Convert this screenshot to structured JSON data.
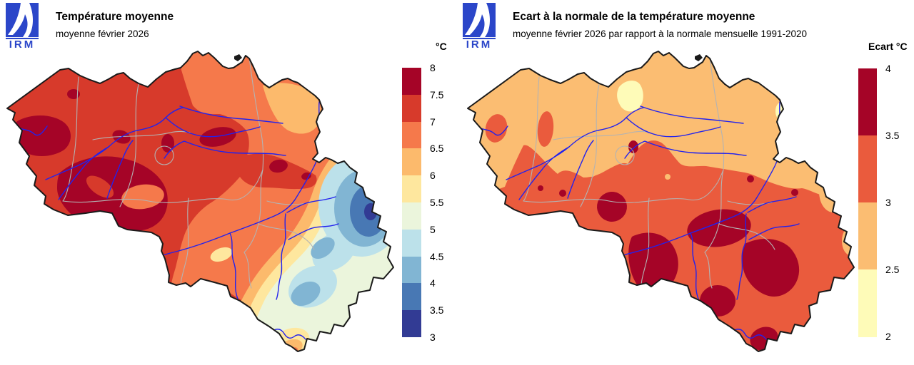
{
  "left_panel": {
    "logo_text": "IRM",
    "title": "Température moyenne",
    "subtitle": "moyenne février 2026",
    "colorbar": {
      "unit": "°C",
      "labels": [
        "8",
        "7.5",
        "7",
        "6.5",
        "6",
        "5.5",
        "5",
        "4.5",
        "4",
        "3.5",
        "3"
      ],
      "colors": [
        "#A50427",
        "#D73A2B",
        "#F5794B",
        "#FCBA6C",
        "#FEE79E",
        "#EBF5DC",
        "#BCE1EA",
        "#81B5D3",
        "#4878B4",
        "#323B94"
      ]
    }
  },
  "right_panel": {
    "logo_text": "IRM",
    "title": "Ecart à la normale de la température moyenne",
    "subtitle": "moyenne février 2026 par rapport à la normale mensuelle 1991-2020",
    "colorbar": {
      "unit": "Ecart °C",
      "labels": [
        "4",
        "3.5",
        "3",
        "2.5",
        "2"
      ],
      "colors": [
        "#A50427",
        "#EA5B3D",
        "#FBBD72",
        "#FEFBB8"
      ]
    }
  },
  "map_style_colors": {
    "country_border": "#1a1a1a",
    "province_border": "#b3b3b3",
    "river": "#2222EE",
    "logo_blue": "#2B46C9"
  }
}
